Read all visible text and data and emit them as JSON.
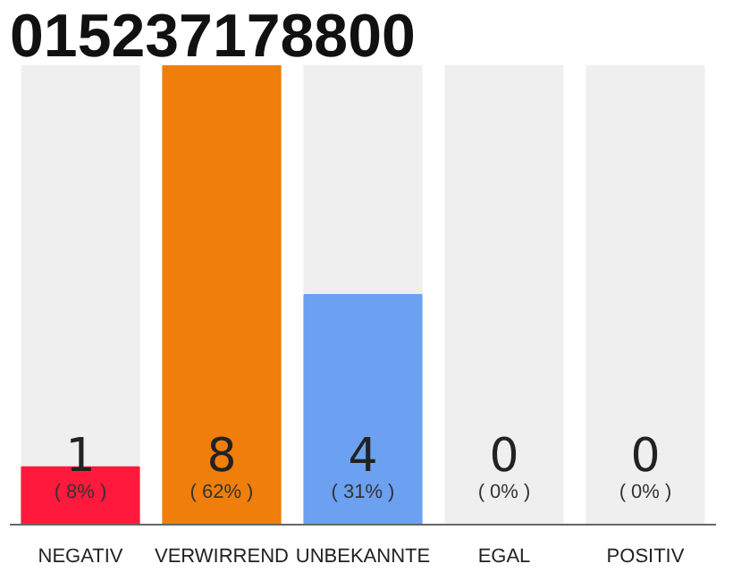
{
  "chart_data": {
    "type": "bar",
    "title": "015237178800",
    "categories": [
      "NEGATIV",
      "VERWIRREND",
      "UNBEKANNTE",
      "EGAL",
      "POSITIV"
    ],
    "values": [
      1,
      8,
      4,
      0,
      0
    ],
    "colors": [
      "#ff1a3d",
      "#f07e0b",
      "#6ba1f0",
      "#c8c8c8",
      "#c8c8c8"
    ],
    "ylim": [
      0,
      8
    ],
    "tick_labels": "x",
    "grid": false,
    "data_labels": true,
    "annotations": [
      "( 8% )",
      "( 62% )",
      "( 31% )",
      "( 0% )",
      "( 0% )"
    ]
  }
}
